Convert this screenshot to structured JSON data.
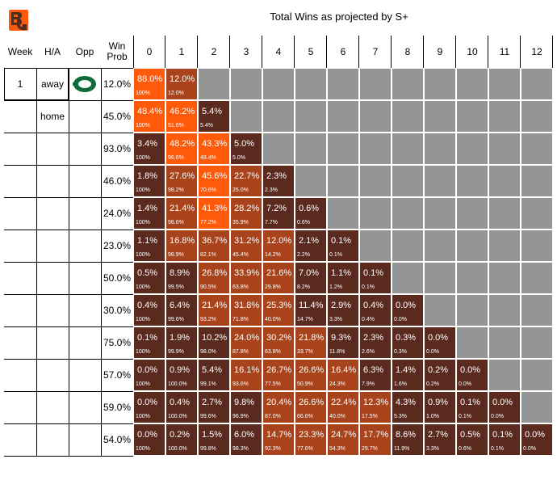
{
  "title": "Total Wins as projected by S+",
  "colors": {
    "dark": "#5a2a1f",
    "mid": "#a8431c",
    "bright": "#fe5a0a",
    "gray": "#959595"
  },
  "headers": {
    "week": "Week",
    "ha": "H/A",
    "opp": "Opp",
    "winprob": "Win\nProb"
  },
  "chart_data": {
    "type": "heatmap",
    "title": "Total Wins as projected by S+",
    "columns": [
      "0",
      "1",
      "2",
      "3",
      "4",
      "5",
      "6",
      "7",
      "8",
      "9",
      "10",
      "11",
      "12"
    ],
    "rows": [
      {
        "week": "1",
        "ha": "away",
        "opp": "oregon-logo",
        "win_prob": "12.0%",
        "pct": [
          "88.0%",
          "12.0%"
        ],
        "cum": [
          "100%",
          "12.0%"
        ]
      },
      {
        "week": "",
        "ha": "home",
        "opp": "",
        "win_prob": "45.0%",
        "pct": [
          "48.4%",
          "46.2%",
          "5.4%"
        ],
        "cum": [
          "100%",
          "51.6%",
          "5.4%"
        ]
      },
      {
        "week": "",
        "ha": "",
        "opp": "",
        "win_prob": "93.0%",
        "pct": [
          "3.4%",
          "48.2%",
          "43.3%",
          "5.0%"
        ],
        "cum": [
          "100%",
          "96.6%",
          "48.4%",
          "5.0%"
        ]
      },
      {
        "week": "",
        "ha": "",
        "opp": "",
        "win_prob": "46.0%",
        "pct": [
          "1.8%",
          "27.6%",
          "45.6%",
          "22.7%",
          "2.3%"
        ],
        "cum": [
          "100%",
          "98.2%",
          "70.6%",
          "25.0%",
          "2.3%"
        ]
      },
      {
        "week": "",
        "ha": "",
        "opp": "",
        "win_prob": "24.0%",
        "pct": [
          "1.4%",
          "21.4%",
          "41.3%",
          "28.2%",
          "7.2%",
          "0.6%"
        ],
        "cum": [
          "100%",
          "98.6%",
          "77.2%",
          "35.9%",
          "7.7%",
          "0.6%"
        ]
      },
      {
        "week": "",
        "ha": "",
        "opp": "",
        "win_prob": "23.0%",
        "pct": [
          "1.1%",
          "16.8%",
          "36.7%",
          "31.2%",
          "12.0%",
          "2.1%",
          "0.1%"
        ],
        "cum": [
          "100%",
          "98.9%",
          "82.1%",
          "45.4%",
          "14.2%",
          "2.2%",
          "0.1%"
        ]
      },
      {
        "week": "",
        "ha": "",
        "opp": "",
        "win_prob": "50.0%",
        "pct": [
          "0.5%",
          "8.9%",
          "26.8%",
          "33.9%",
          "21.6%",
          "7.0%",
          "1.1%",
          "0.1%"
        ],
        "cum": [
          "100%",
          "99.5%",
          "90.5%",
          "63.8%",
          "29.8%",
          "8.2%",
          "1.2%",
          "0.1%"
        ]
      },
      {
        "week": "",
        "ha": "",
        "opp": "",
        "win_prob": "30.0%",
        "pct": [
          "0.4%",
          "6.4%",
          "21.4%",
          "31.8%",
          "25.3%",
          "11.4%",
          "2.9%",
          "0.4%",
          "0.0%"
        ],
        "cum": [
          "100%",
          "99.6%",
          "93.2%",
          "71.8%",
          "40.0%",
          "14.7%",
          "3.3%",
          "0.4%",
          "0.0%"
        ]
      },
      {
        "week": "",
        "ha": "",
        "opp": "",
        "win_prob": "75.0%",
        "pct": [
          "0.1%",
          "1.9%",
          "10.2%",
          "24.0%",
          "30.2%",
          "21.8%",
          "9.3%",
          "2.3%",
          "0.3%",
          "0.0%"
        ],
        "cum": [
          "100%",
          "99.9%",
          "98.0%",
          "87.8%",
          "63.8%",
          "33.7%",
          "11.8%",
          "2.6%",
          "0.3%",
          "0.0%"
        ]
      },
      {
        "week": "",
        "ha": "",
        "opp": "",
        "win_prob": "57.0%",
        "pct": [
          "0.0%",
          "0.9%",
          "5.4%",
          "16.1%",
          "26.7%",
          "26.6%",
          "16.4%",
          "6.3%",
          "1.4%",
          "0.2%",
          "0.0%"
        ],
        "cum": [
          "100%",
          "100.0%",
          "99.1%",
          "93.6%",
          "77.5%",
          "50.9%",
          "24.3%",
          "7.9%",
          "1.6%",
          "0.2%",
          "0.0%"
        ]
      },
      {
        "week": "",
        "ha": "",
        "opp": "",
        "win_prob": "59.0%",
        "pct": [
          "0.0%",
          "0.4%",
          "2.7%",
          "9.8%",
          "20.4%",
          "26.6%",
          "22.4%",
          "12.3%",
          "4.3%",
          "0.9%",
          "0.1%",
          "0.0%"
        ],
        "cum": [
          "100%",
          "100.0%",
          "99.6%",
          "96.9%",
          "87.0%",
          "66.6%",
          "40.0%",
          "17.5%",
          "5.3%",
          "1.0%",
          "0.1%",
          "0.0%"
        ]
      },
      {
        "week": "",
        "ha": "",
        "opp": "",
        "win_prob": "54.0%",
        "pct": [
          "0.0%",
          "0.2%",
          "1.5%",
          "6.0%",
          "14.7%",
          "23.3%",
          "24.7%",
          "17.7%",
          "8.6%",
          "2.7%",
          "0.5%",
          "0.1%",
          "0.0%"
        ],
        "cum": [
          "100%",
          "100.0%",
          "99.8%",
          "98.3%",
          "92.3%",
          "77.6%",
          "54.3%",
          "29.7%",
          "11.9%",
          "3.3%",
          "0.6%",
          "0.1%",
          "0.0%"
        ]
      }
    ]
  }
}
